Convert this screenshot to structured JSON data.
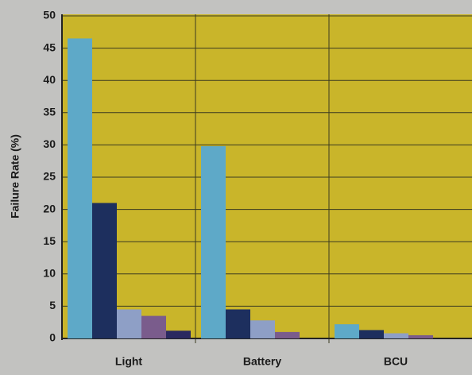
{
  "chart_data": {
    "type": "bar",
    "y_label": "Failure Rate (%)",
    "categories": [
      "Light",
      "Battery",
      "BCU"
    ],
    "series": [
      {
        "color": "#5ea9c8",
        "values": [
          46.5,
          29.8,
          2.2
        ]
      },
      {
        "color": "#1d2f5e",
        "values": [
          21,
          4.5,
          1.3
        ]
      },
      {
        "color": "#8e9fc6",
        "values": [
          4.5,
          2.8,
          0.8
        ]
      },
      {
        "color": "#7a5c8c",
        "values": [
          3.5,
          1,
          0.5
        ]
      },
      {
        "color": "#2a2960",
        "values": [
          1.2,
          null,
          null
        ]
      }
    ],
    "ylim": [
      0,
      50
    ],
    "yticks": [
      0,
      5,
      10,
      15,
      20,
      25,
      30,
      35,
      40,
      45,
      50
    ],
    "grid": true
  }
}
